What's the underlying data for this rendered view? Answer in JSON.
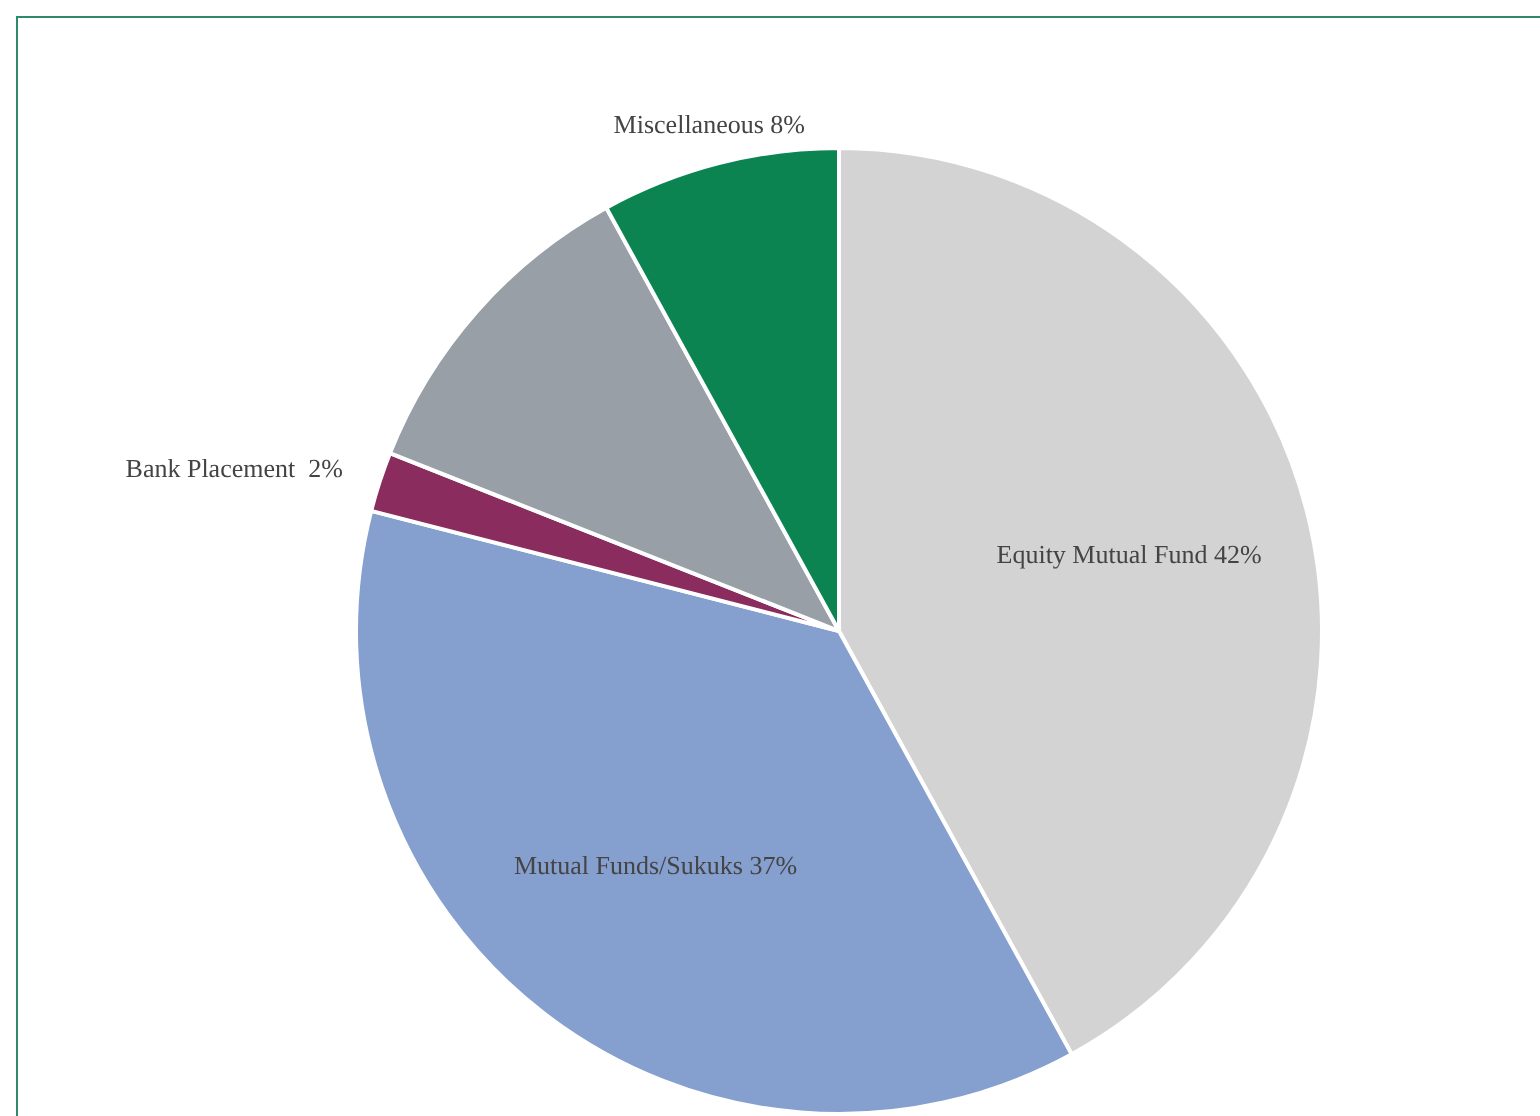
{
  "chart_data": {
    "type": "pie",
    "categories": [
      "Equity Mutual Fund",
      "Mutual Funds/Sukuks",
      "Bank Placement ",
      null,
      "Miscellaneous"
    ],
    "values": [
      42,
      37,
      2,
      11,
      8
    ],
    "value_labels": [
      "42%",
      "37%",
      "2%",
      null,
      "8%"
    ],
    "colors": [
      "#d3d3d3",
      "#859fcf",
      "#8b2c5f",
      "#999fa6",
      "#0b8452"
    ],
    "legend": false
  }
}
